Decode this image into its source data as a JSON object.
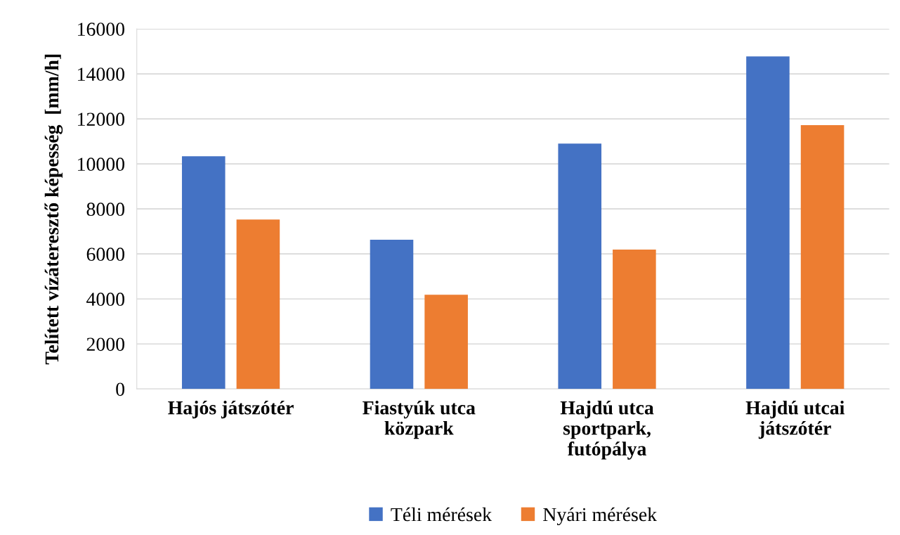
{
  "chart_data": {
    "type": "bar",
    "ylabel": "Telített vízáteresztő képesség  [mm/h]",
    "categories": [
      "Hajós játszótér",
      "Fiastyúk utca\nközpark",
      "Hajdú utca\nsportpark,\nfutópálya",
      "Hajdú utcai\njátszótér"
    ],
    "series": [
      {
        "name": "Téli mérések",
        "color": "#4472c4",
        "values": [
          10340,
          6630,
          10900,
          14780
        ]
      },
      {
        "name": "Nyári mérések",
        "color": "#ed7d31",
        "values": [
          7530,
          4190,
          6190,
          11720
        ]
      }
    ],
    "ylim": [
      0,
      16000
    ],
    "yticks": [
      0,
      2000,
      4000,
      6000,
      8000,
      10000,
      12000,
      14000,
      16000
    ],
    "grid": "y",
    "legend": "bottom"
  }
}
